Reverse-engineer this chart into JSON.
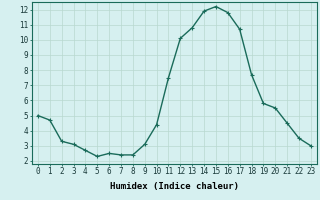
{
  "title": "",
  "xlabel": "Humidex (Indice chaleur)",
  "ylabel": "",
  "x": [
    0,
    1,
    2,
    3,
    4,
    5,
    6,
    7,
    8,
    9,
    10,
    11,
    12,
    13,
    14,
    15,
    16,
    17,
    18,
    19,
    20,
    21,
    22,
    23
  ],
  "y": [
    5.0,
    4.7,
    3.3,
    3.1,
    2.7,
    2.3,
    2.5,
    2.4,
    2.4,
    3.1,
    4.4,
    7.5,
    10.1,
    10.8,
    11.9,
    12.2,
    11.8,
    10.7,
    7.7,
    5.8,
    5.5,
    4.5,
    3.5,
    3.0
  ],
  "line_color": "#1a6b5a",
  "marker": "+",
  "marker_size": 3,
  "marker_linewidth": 0.8,
  "background_color": "#d6f0f0",
  "grid_color": "#b8d8d0",
  "xlim": [
    -0.5,
    23.5
  ],
  "ylim": [
    1.8,
    12.5
  ],
  "yticks": [
    2,
    3,
    4,
    5,
    6,
    7,
    8,
    9,
    10,
    11,
    12
  ],
  "xticks": [
    0,
    1,
    2,
    3,
    4,
    5,
    6,
    7,
    8,
    9,
    10,
    11,
    12,
    13,
    14,
    15,
    16,
    17,
    18,
    19,
    20,
    21,
    22,
    23
  ],
  "tick_fontsize": 5.5,
  "xlabel_fontsize": 6.5,
  "linewidth": 1.0
}
